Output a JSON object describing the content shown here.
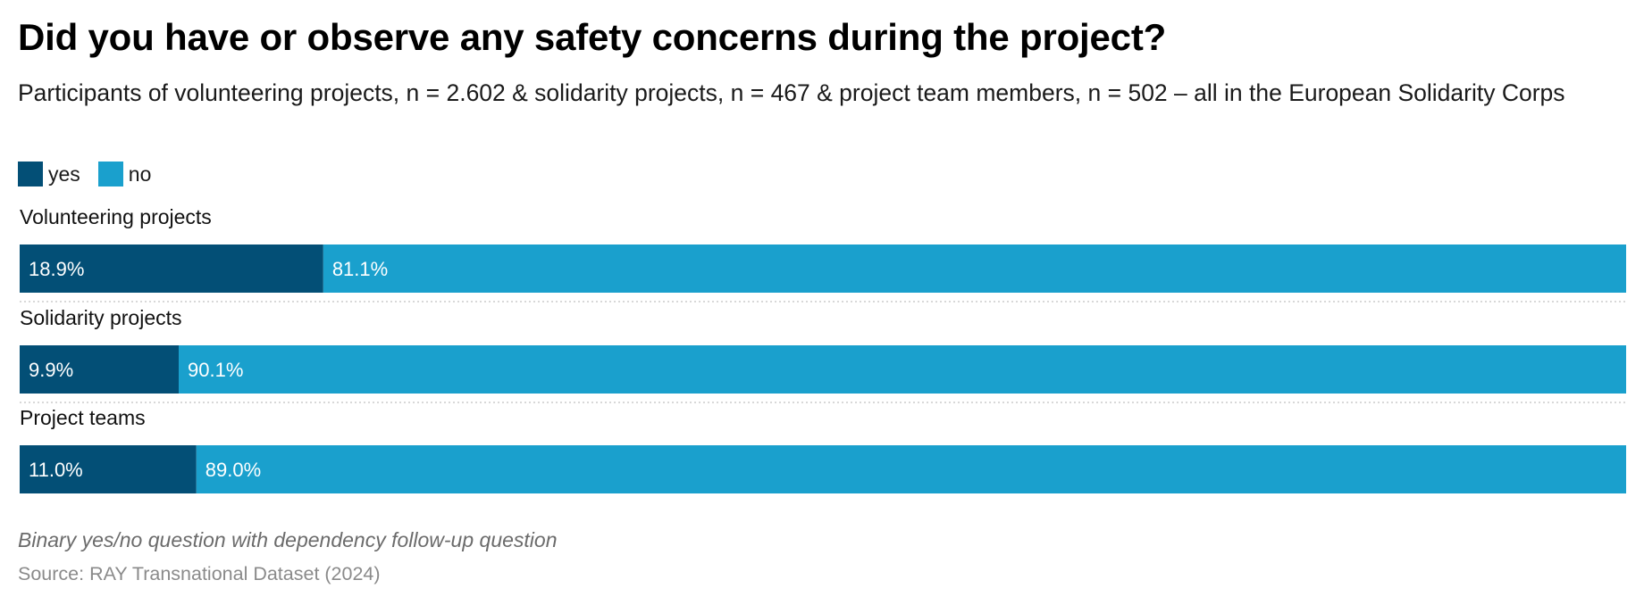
{
  "title": "Did you have or observe any safety concerns during the project?",
  "subtitle": "Participants of volunteering projects, n = 2.602 & solidarity projects, n = 467 & project team members, n = 502 – all in the European Solidarity Corps",
  "footnote": "Binary yes/no question with dependency follow-up question",
  "source": "Source: RAY Transnational Dataset (2024)",
  "colors": {
    "yes": "#034f76",
    "no": "#1aa0cd",
    "label_text": "#ffffff",
    "separator": "#cccccc"
  },
  "chart_data": {
    "type": "bar",
    "orientation": "horizontal",
    "stacked": true,
    "percent_stacked": true,
    "categories": [
      "Volunteering projects",
      "Solidarity projects",
      "Project teams"
    ],
    "series": [
      {
        "name": "yes",
        "values": [
          18.9,
          9.9,
          11.0
        ],
        "labels": [
          "18.9%",
          "9.9%",
          "11.0%"
        ]
      },
      {
        "name": "no",
        "values": [
          81.1,
          90.1,
          89.0
        ],
        "labels": [
          "81.1%",
          "90.1%",
          "89.0%"
        ]
      }
    ],
    "xlim": [
      0,
      100
    ],
    "legend_position": "top-left",
    "grid": false
  }
}
